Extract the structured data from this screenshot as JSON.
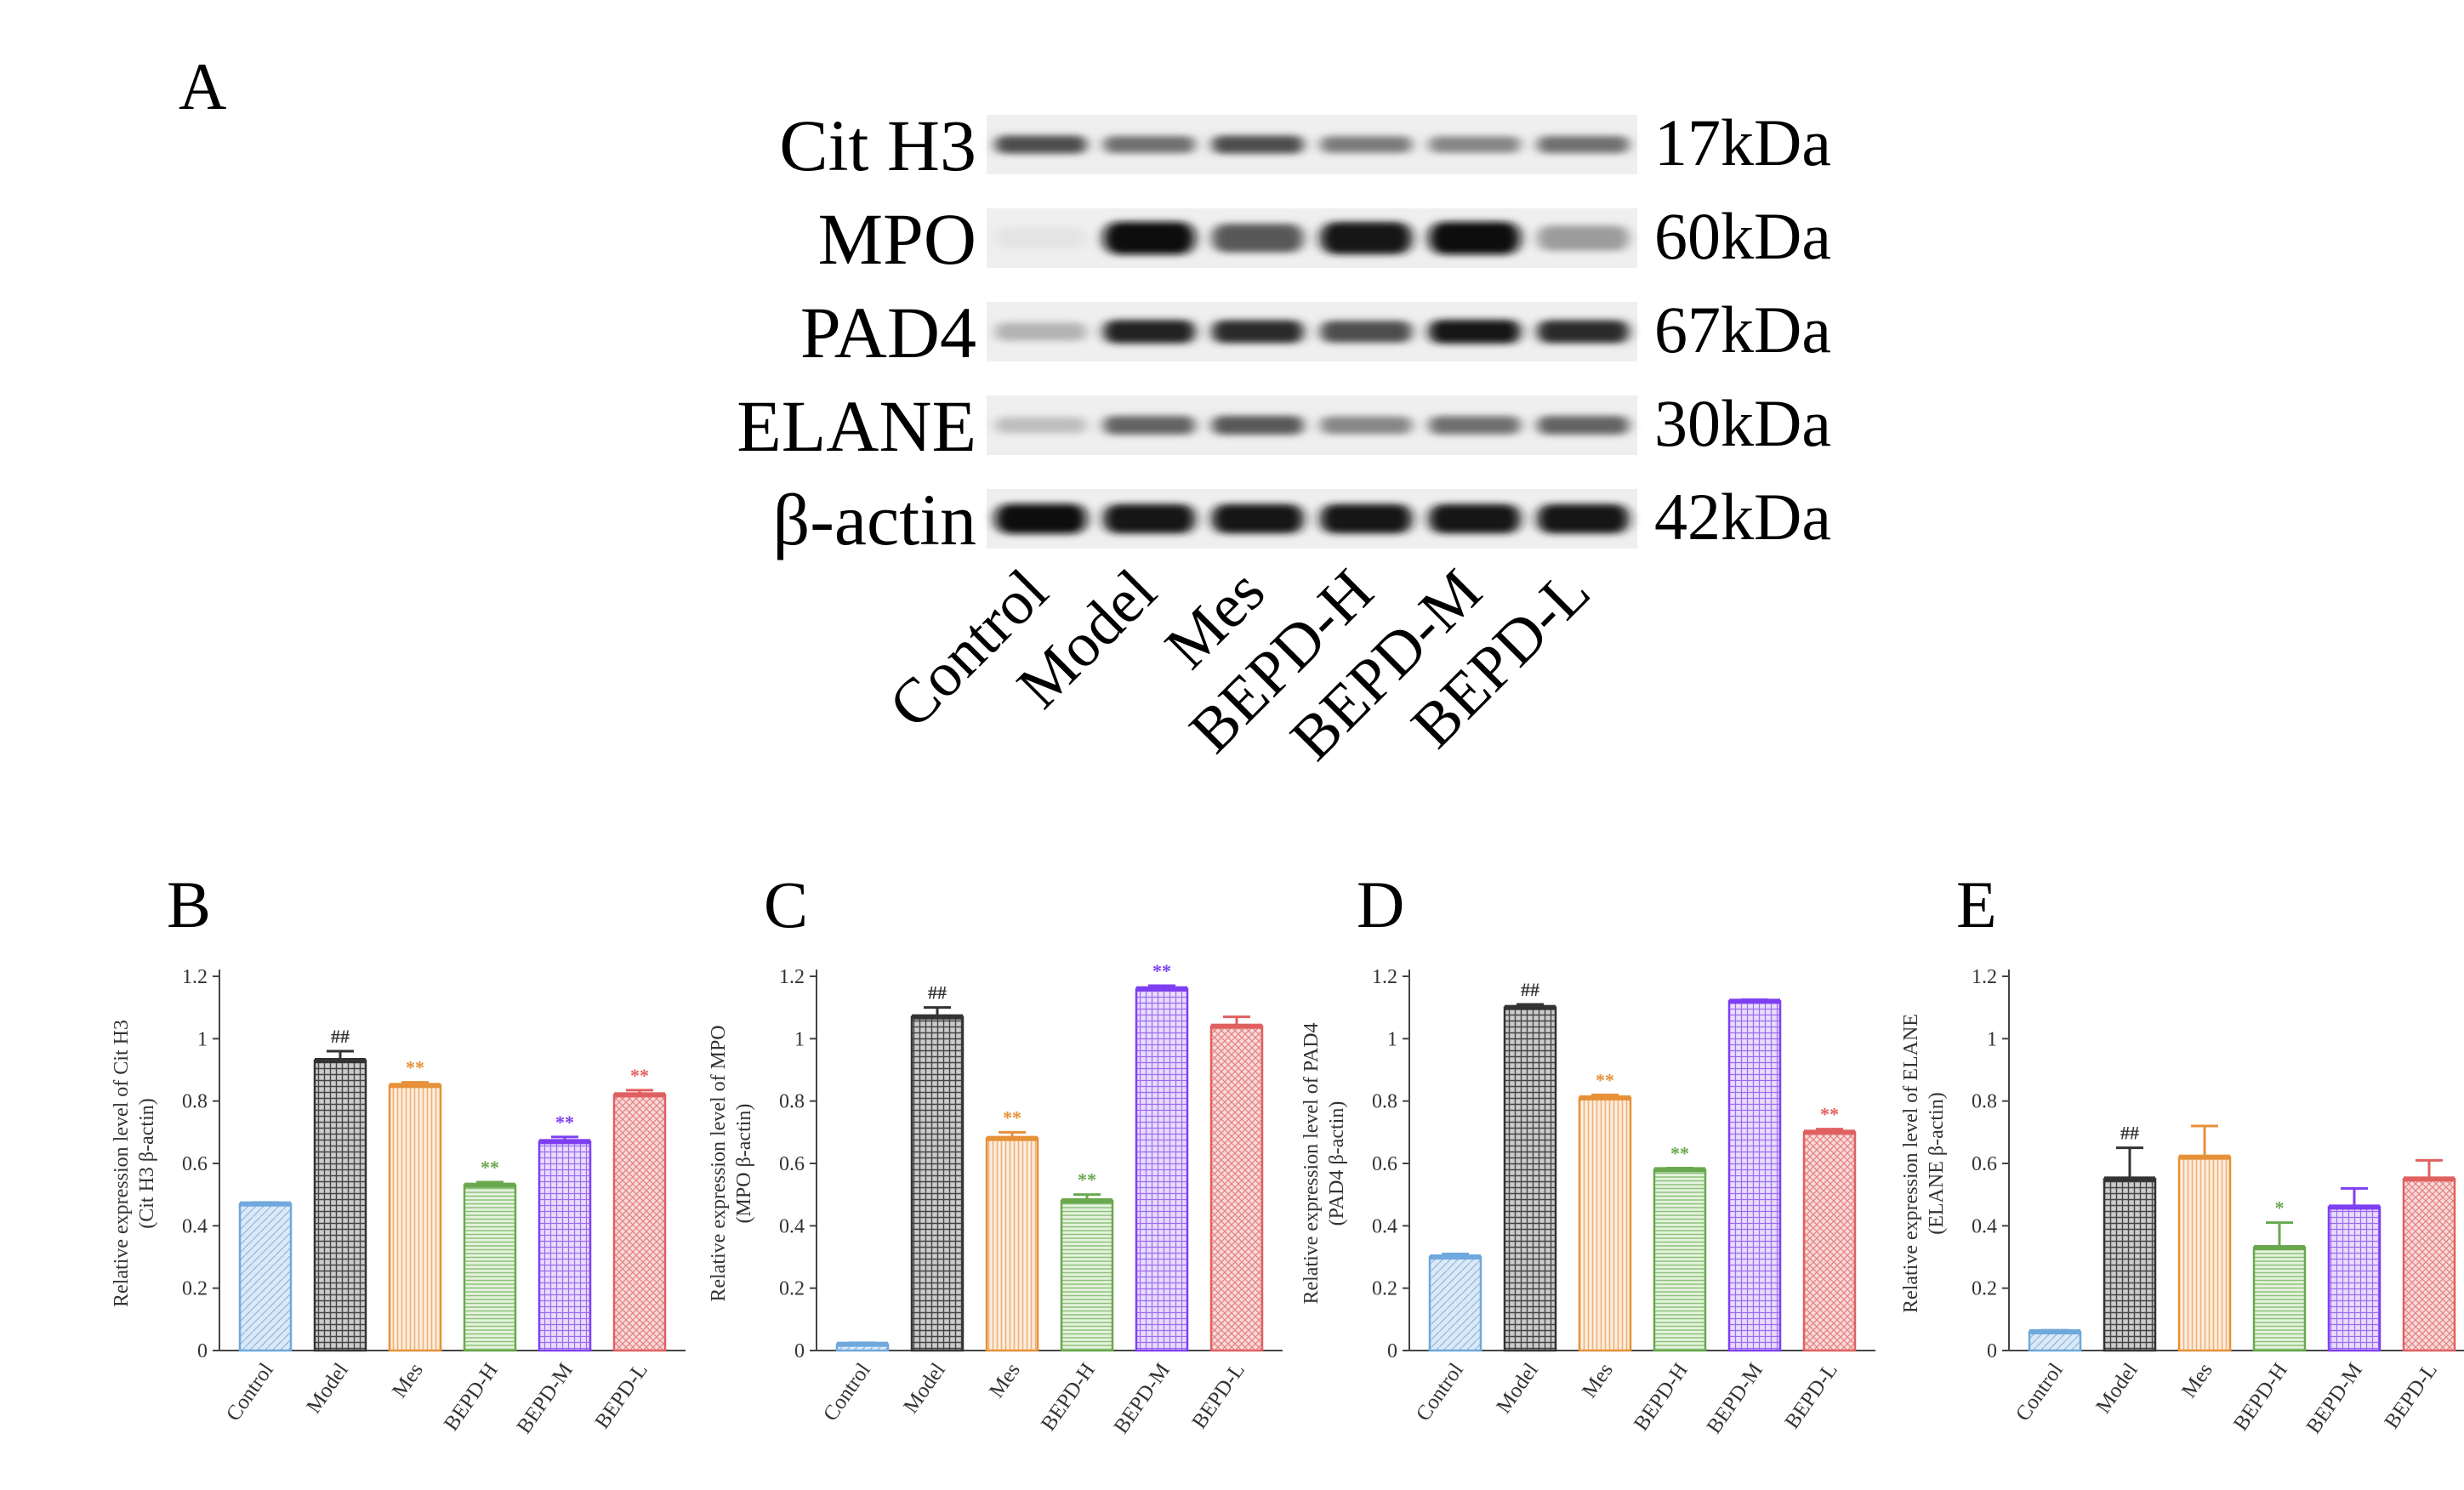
{
  "panel_a": {
    "letter": "A",
    "proteins": [
      {
        "name": "Cit H3",
        "kda": "17kDa",
        "intensity": [
          0.7,
          0.55,
          0.7,
          0.5,
          0.45,
          0.55
        ],
        "thick": 0.45
      },
      {
        "name": "MPO",
        "kda": "60kDa",
        "intensity": [
          0.03,
          1.0,
          0.65,
          0.95,
          1.0,
          0.35
        ],
        "thick": 0.9
      },
      {
        "name": "PAD4",
        "kda": "67kDa",
        "intensity": [
          0.25,
          0.9,
          0.85,
          0.7,
          0.95,
          0.85
        ],
        "thick": 0.6
      },
      {
        "name": "ELANE",
        "kda": "30kDa",
        "intensity": [
          0.2,
          0.6,
          0.65,
          0.45,
          0.55,
          0.6
        ],
        "thick": 0.5
      },
      {
        "name": "β-actin",
        "kda": "42kDa",
        "intensity": [
          1.0,
          0.95,
          0.95,
          0.95,
          0.95,
          0.95
        ],
        "thick": 0.8
      }
    ],
    "lanes": [
      "Control",
      "Model",
      "Mes",
      "BEPD-H",
      "BEPD-M",
      "BEPD-L"
    ]
  },
  "chart_data": [
    {
      "type": "bar",
      "letter": "B",
      "ylabel": "Relative expression level of Cit H3",
      "ylabel2": "(Cit H3 β-actin)",
      "categories": [
        "Control",
        "Model",
        "Mes",
        "BEPD-H",
        "BEPD-M",
        "BEPD-L"
      ],
      "values": [
        0.47,
        0.93,
        0.85,
        0.53,
        0.67,
        0.82
      ],
      "errors": [
        0.005,
        0.03,
        0.01,
        0.01,
        0.015,
        0.015
      ],
      "annotations": [
        "",
        "##",
        "**",
        "**",
        "**",
        "**"
      ],
      "ylim": [
        0,
        1.2
      ],
      "yticks": [
        "0",
        "0.2",
        "0.4",
        "0.6",
        "0.8",
        "1",
        "1.2"
      ]
    },
    {
      "type": "bar",
      "letter": "C",
      "ylabel": "Relative expression level of MPO",
      "ylabel2": "(MPO β-actin)",
      "categories": [
        "Control",
        "Model",
        "Mes",
        "BEPD-H",
        "BEPD-M",
        "BEPD-L"
      ],
      "values": [
        0.02,
        1.07,
        0.68,
        0.48,
        1.16,
        1.04
      ],
      "errors": [
        0.005,
        0.03,
        0.02,
        0.02,
        0.01,
        0.03
      ],
      "annotations": [
        "",
        "##",
        "**",
        "**",
        "**",
        ""
      ],
      "ylim": [
        0,
        1.2
      ],
      "yticks": [
        "0",
        "0.2",
        "0.4",
        "0.6",
        "0.8",
        "1",
        "1.2"
      ]
    },
    {
      "type": "bar",
      "letter": "D",
      "ylabel": "Relative expression level of PAD4",
      "ylabel2": "(PAD4 β-actin)",
      "categories": [
        "Control",
        "Model",
        "Mes",
        "BEPD-H",
        "BEPD-M",
        "BEPD-L"
      ],
      "values": [
        0.3,
        1.1,
        0.81,
        0.58,
        1.12,
        0.7
      ],
      "errors": [
        0.01,
        0.01,
        0.01,
        0.005,
        0.005,
        0.01
      ],
      "annotations": [
        "",
        "##",
        "**",
        "**",
        "",
        "**"
      ],
      "ylim": [
        0,
        1.2
      ],
      "yticks": [
        "0",
        "0.2",
        "0.4",
        "0.6",
        "0.8",
        "1",
        "1.2"
      ]
    },
    {
      "type": "bar",
      "letter": "E",
      "ylabel": "Relative expression level of ELANE",
      "ylabel2": "(ELANE β-actin)",
      "categories": [
        "Control",
        "Model",
        "Mes",
        "BEPD-H",
        "BEPD-M",
        "BEPD-L"
      ],
      "values": [
        0.06,
        0.55,
        0.62,
        0.33,
        0.46,
        0.55
      ],
      "errors": [
        0.005,
        0.1,
        0.1,
        0.08,
        0.06,
        0.06
      ],
      "annotations": [
        "",
        "##",
        "",
        "*",
        "",
        ""
      ],
      "ylim": [
        0,
        1.2
      ],
      "yticks": [
        "0",
        "0.2",
        "0.4",
        "0.6",
        "0.8",
        "1",
        "1.2"
      ]
    }
  ],
  "colors": {
    "series": [
      "#6fa8dc",
      "#333333",
      "#e69138",
      "#6aa84f",
      "#7e3ff2",
      "#e06060"
    ],
    "fills": [
      "#cfe2f3",
      "#d0d0d0",
      "#fce5cd",
      "#d9ead3",
      "#e4d3fb",
      "#f4cccc"
    ],
    "axis": "#444444"
  }
}
